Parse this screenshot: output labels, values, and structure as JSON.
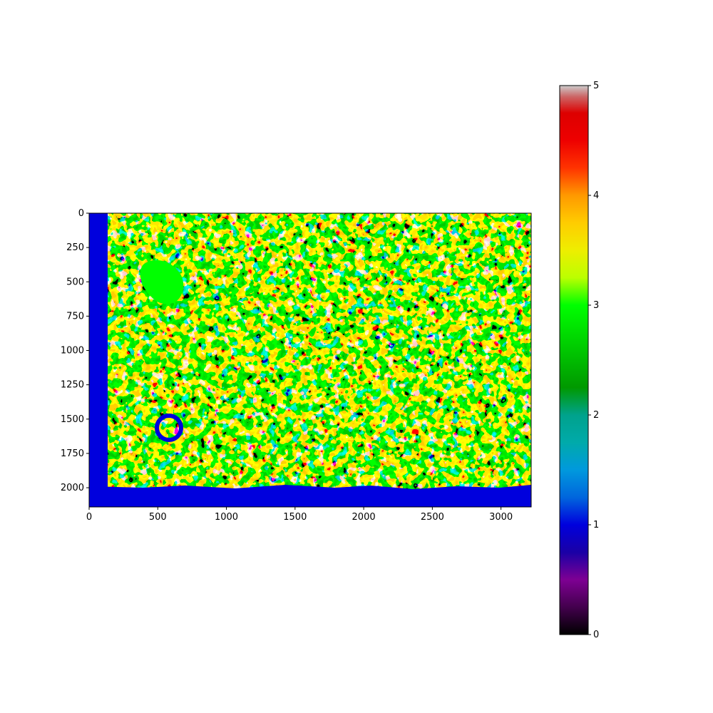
{
  "chart_data": {
    "type": "heatmap",
    "title": "",
    "xlabel": "",
    "ylabel": "",
    "image_extent": {
      "width": 3220,
      "height": 2140
    },
    "xlim": [
      0,
      3220
    ],
    "ylim": [
      2140,
      0
    ],
    "x_ticks": [
      0,
      500,
      1000,
      1500,
      2000,
      2500,
      3000
    ],
    "y_ticks": [
      0,
      250,
      500,
      750,
      1000,
      1250,
      1500,
      1750,
      2000
    ],
    "colorbar": {
      "range": [
        0,
        5
      ],
      "ticks": [
        0,
        1,
        2,
        3,
        4,
        5
      ],
      "colormap": "nipy_spectral",
      "stops": [
        {
          "value": 0.0,
          "color": "#000000"
        },
        {
          "value": 0.25,
          "color": "#43004d"
        },
        {
          "value": 0.5,
          "color": "#7e0093"
        },
        {
          "value": 0.75,
          "color": "#1a00a6"
        },
        {
          "value": 1.0,
          "color": "#0000dd"
        },
        {
          "value": 1.25,
          "color": "#0066dd"
        },
        {
          "value": 1.5,
          "color": "#0099dd"
        },
        {
          "value": 1.75,
          "color": "#00aaaa"
        },
        {
          "value": 2.0,
          "color": "#00a28c"
        },
        {
          "value": 2.25,
          "color": "#009900"
        },
        {
          "value": 2.5,
          "color": "#00bb00"
        },
        {
          "value": 2.75,
          "color": "#00dd00"
        },
        {
          "value": 3.0,
          "color": "#00ff00"
        },
        {
          "value": 3.25,
          "color": "#bbff00"
        },
        {
          "value": 3.5,
          "color": "#eeee00"
        },
        {
          "value": 3.75,
          "color": "#ffcc00"
        },
        {
          "value": 4.0,
          "color": "#ff9900"
        },
        {
          "value": 4.25,
          "color": "#ff3300"
        },
        {
          "value": 4.5,
          "color": "#ee0000"
        },
        {
          "value": 4.75,
          "color": "#dd0000"
        },
        {
          "value": 4.9,
          "color": "#cc6666"
        },
        {
          "value": 5.0,
          "color": "#cccccc"
        }
      ]
    },
    "regions": [
      {
        "label": "border",
        "value": 1.0
      },
      {
        "label": "background_texture",
        "values": [
          0.2,
          1.0,
          2.0,
          3.0,
          3.8,
          4.0,
          4.5,
          5.0
        ]
      },
      {
        "label": "green_patch",
        "value": 3.0
      },
      {
        "label": "blue_ring",
        "value": 1.0
      }
    ]
  }
}
